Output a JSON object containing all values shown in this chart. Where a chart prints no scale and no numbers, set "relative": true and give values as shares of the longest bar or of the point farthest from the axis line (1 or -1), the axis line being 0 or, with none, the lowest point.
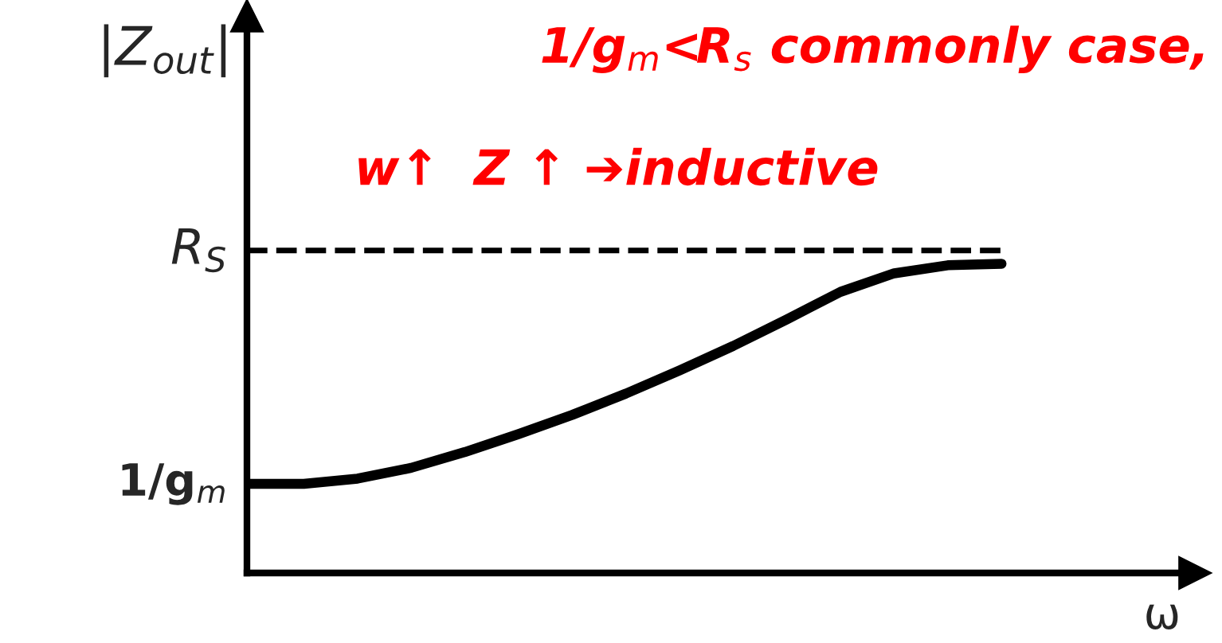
{
  "chart_data": {
    "type": "line",
    "relative": true,
    "title": "1/g$_{m}$<R$_{s}$ commonly case,",
    "subtitle": "w↑  Z ↑ ➔inductive",
    "xlabel": "ω",
    "ylabel": "|Z$_{out}$|",
    "categories": [
      null,
      null,
      null,
      null,
      null,
      null,
      null,
      null,
      null,
      null,
      null,
      null,
      null,
      null,
      null
    ],
    "series": [
      {
        "color": "#000000",
        "values": [
          0.288,
          0.288,
          0.305,
          0.34,
          0.391,
          0.449,
          0.511,
          0.58,
          0.655,
          0.734,
          0.82,
          0.909,
          0.969,
          0.995,
          1.0
        ]
      }
    ],
    "ref_lines": [
      {
        "axis": "y",
        "value": 1.043,
        "label": "R$_{S}$",
        "line_style": "dashed",
        "color": "#000000"
      }
    ],
    "annotations": [
      "1/g$_{m}$"
    ],
    "legend": false,
    "marker": "none",
    "line_style": "solid"
  }
}
